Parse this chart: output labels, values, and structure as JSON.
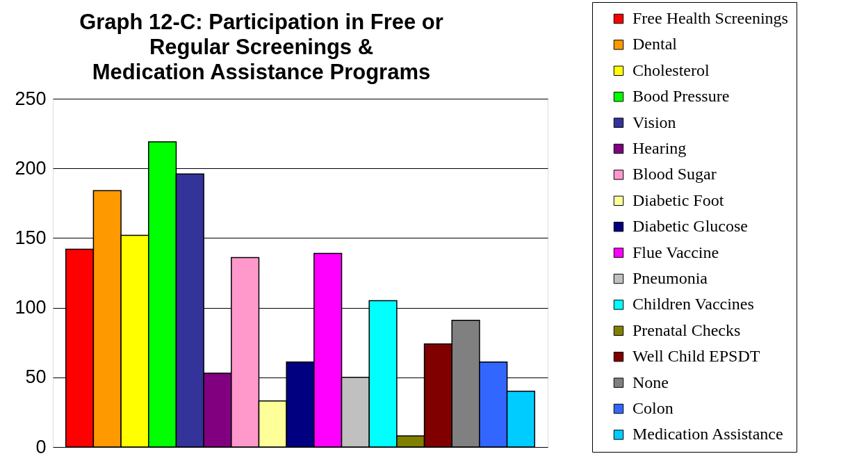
{
  "chart_data": {
    "type": "bar",
    "title": "Graph 12-C:  Participation in Free or\nRegular Screenings &\nMedication Assistance Programs",
    "categories": [
      null
    ],
    "series": [
      {
        "name": "Free Health Screenings",
        "color": "#ff0000",
        "values": [
          142
        ]
      },
      {
        "name": "Dental",
        "color": "#ff9900",
        "values": [
          184
        ]
      },
      {
        "name": "Cholesterol",
        "color": "#ffff00",
        "values": [
          152
        ]
      },
      {
        "name": "Bood Pressure",
        "color": "#00ff00",
        "values": [
          219
        ]
      },
      {
        "name": "Vision",
        "color": "#333399",
        "values": [
          196
        ]
      },
      {
        "name": "Hearing",
        "color": "#800080",
        "values": [
          53
        ]
      },
      {
        "name": "Blood Sugar",
        "color": "#ff99cc",
        "values": [
          136
        ]
      },
      {
        "name": "Diabetic Foot",
        "color": "#ffff99",
        "values": [
          33
        ]
      },
      {
        "name": "Diabetic Glucose",
        "color": "#000080",
        "values": [
          61
        ]
      },
      {
        "name": "Flue Vaccine",
        "color": "#ff00ff",
        "values": [
          139
        ]
      },
      {
        "name": "Pneumonia",
        "color": "#c0c0c0",
        "values": [
          50
        ]
      },
      {
        "name": "Children Vaccines",
        "color": "#00ffff",
        "values": [
          105
        ]
      },
      {
        "name": "Prenatal Checks",
        "color": "#808000",
        "values": [
          8
        ]
      },
      {
        "name": "Well Child EPSDT",
        "color": "#800000",
        "values": [
          74
        ]
      },
      {
        "name": "None",
        "color": "#808080",
        "values": [
          91
        ]
      },
      {
        "name": "Colon",
        "color": "#3366ff",
        "values": [
          61
        ]
      },
      {
        "name": "Medication Assistance",
        "color": "#00ccff",
        "values": [
          40
        ]
      }
    ],
    "ylim": [
      0,
      250
    ],
    "yticks": [
      0,
      50,
      100,
      150,
      200,
      250
    ],
    "grid": "y",
    "legend": "right",
    "tick_labels": "y"
  }
}
